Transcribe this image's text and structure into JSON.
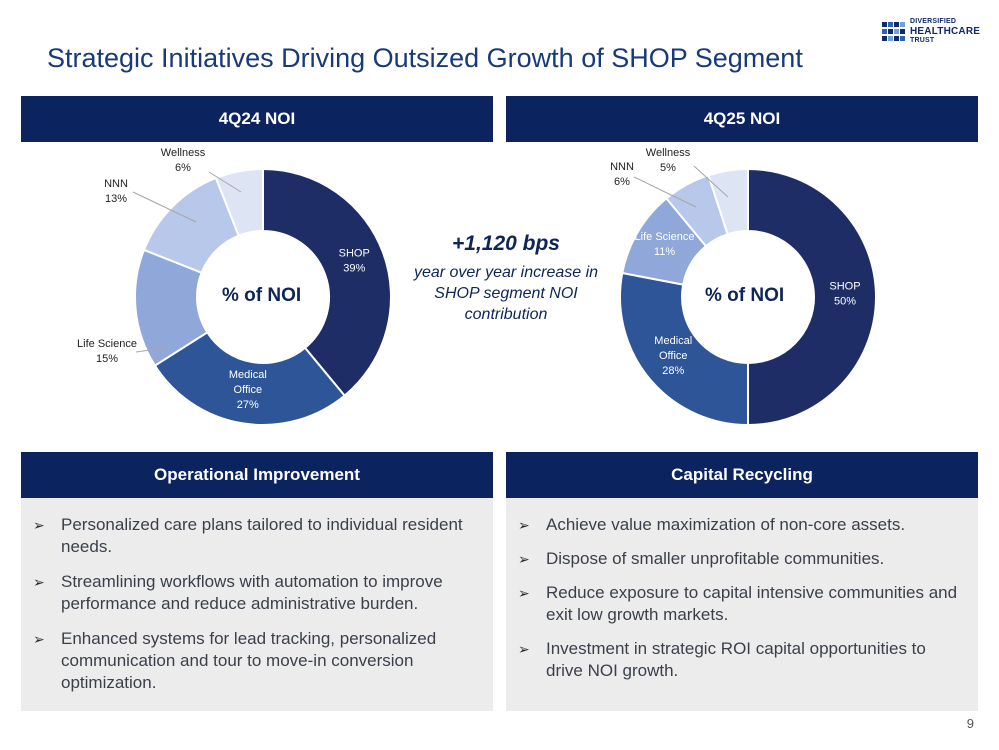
{
  "title": "Strategic Initiatives Driving Outsized Growth of SHOP Segment",
  "logo": {
    "line1": "DIVERSIFIED",
    "line2": "HEALTHCARE",
    "line3": "TRUST"
  },
  "center_label": "% of NOI",
  "callout": {
    "value": "+1,120 bps",
    "description": "year over year increase in SHOP segment NOI contribution"
  },
  "operational": {
    "header": "Operational Improvement",
    "items": [
      "Personalized care plans tailored to individual resident needs.",
      "Streamlining workflows with automation to improve performance and reduce administrative burden.",
      "Enhanced systems for lead tracking, personalized communication and tour to move-in conversion optimization."
    ]
  },
  "capital": {
    "header": "Capital Recycling",
    "items": [
      "Achieve value maximization of non-core assets.",
      "Dispose of smaller unprofitable communities.",
      "Reduce exposure to capital intensive communities and exit low growth markets.",
      "Investment in strategic ROI capital opportunities to drive NOI growth."
    ]
  },
  "page_number": "9",
  "chart_data": [
    {
      "type": "pie",
      "title": "4Q24 NOI",
      "center_label": "% of NOI",
      "slices": [
        {
          "label": "SHOP",
          "value": 39,
          "color": "#1f2d67",
          "label_color": "#ffffff",
          "label_lines": [
            "SHOP",
            "39%"
          ],
          "outside": false
        },
        {
          "label": "Medical Office",
          "value": 27,
          "color": "#2d5597",
          "label_color": "#ffffff",
          "label_lines": [
            "Medical",
            "Office",
            "27%"
          ],
          "outside": false
        },
        {
          "label": "Life Science",
          "value": 15,
          "color": "#8fa8d9",
          "label_color": "#1f1f1f",
          "label_lines": [
            "Life Science",
            "15%"
          ],
          "outside": true
        },
        {
          "label": "NNN",
          "value": 13,
          "color": "#b8c8ea",
          "label_color": "#1f1f1f",
          "label_lines": [
            "NNN",
            "13%"
          ],
          "outside": true
        },
        {
          "label": "Wellness",
          "value": 6,
          "color": "#dde5f4",
          "label_color": "#1f1f1f",
          "label_lines": [
            "Wellness",
            "6%"
          ],
          "outside": true
        }
      ]
    },
    {
      "type": "pie",
      "title": "4Q25 NOI",
      "center_label": "% of NOI",
      "slices": [
        {
          "label": "SHOP",
          "value": 50,
          "color": "#1f2d67",
          "label_color": "#ffffff",
          "label_lines": [
            "SHOP",
            "50%"
          ],
          "outside": false
        },
        {
          "label": "Medical Office",
          "value": 28,
          "color": "#2d5597",
          "label_color": "#ffffff",
          "label_lines": [
            "Medical",
            "Office",
            "28%"
          ],
          "outside": false
        },
        {
          "label": "Life Science",
          "value": 11,
          "color": "#8fa8d9",
          "label_color": "#ffffff",
          "label_lines": [
            "Life Science",
            "11%"
          ],
          "outside": false
        },
        {
          "label": "NNN",
          "value": 6,
          "color": "#b8c8ea",
          "label_color": "#1f1f1f",
          "label_lines": [
            "NNN",
            "6%"
          ],
          "outside": true
        },
        {
          "label": "Wellness",
          "value": 5,
          "color": "#dde5f4",
          "label_color": "#1f1f1f",
          "label_lines": [
            "Wellness",
            "5%"
          ],
          "outside": true
        }
      ]
    }
  ]
}
